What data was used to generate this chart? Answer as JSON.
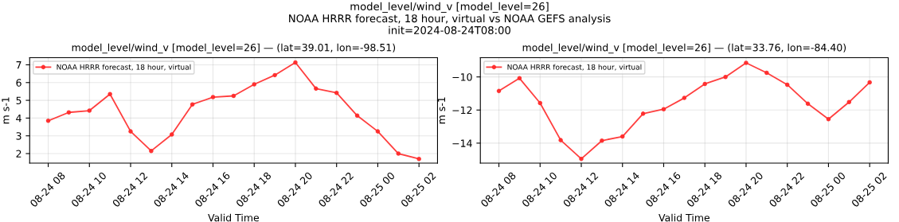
{
  "chart_data": [
    {
      "type": "line",
      "title": "model_level/wind_v [model_level=26] — (lat=39.01, lon=-98.51)",
      "annotations": [
        "model_level/wind_v [model_level=26]\nNOAA HRRR forecast, 18 hour, virtual vs NOAA GEFS analysis\ninit=2024-08-24T08:00"
      ],
      "xlabel": "Valid Time",
      "ylabel": "m s-1",
      "x": [
        "2024-08-24T08:00",
        "2024-08-24T09:00",
        "2024-08-24T10:00",
        "2024-08-24T11:00",
        "2024-08-24T12:00",
        "2024-08-24T13:00",
        "2024-08-24T14:00",
        "2024-08-24T15:00",
        "2024-08-24T16:00",
        "2024-08-24T17:00",
        "2024-08-24T18:00",
        "2024-08-24T19:00",
        "2024-08-24T20:00",
        "2024-08-24T21:00",
        "2024-08-24T22:00",
        "2024-08-24T23:00",
        "2024-08-25T00:00",
        "2024-08-25T01:00",
        "2024-08-25T02:00"
      ],
      "series": [
        {
          "name": "NOAA HRRR forecast, 18 hour, virtual",
          "color": "#ff2a2a",
          "values": [
            3.85,
            4.32,
            4.42,
            5.35,
            3.25,
            2.15,
            3.08,
            4.77,
            5.18,
            5.25,
            5.9,
            6.42,
            7.13,
            5.66,
            5.42,
            4.14,
            3.25,
            2.0,
            1.7
          ]
        }
      ],
      "xlim": [
        "2024-08-24T07:06",
        "2024-08-25T02:54"
      ],
      "ylim": [
        1.46,
        7.4
      ],
      "yticks": [
        2,
        3,
        4,
        5,
        6,
        7
      ],
      "xticks": [
        {
          "value": "2024-08-24T08:00",
          "label": "08-24 08"
        },
        {
          "value": "2024-08-24T10:00",
          "label": "08-24 10"
        },
        {
          "value": "2024-08-24T12:00",
          "label": "08-24 12"
        },
        {
          "value": "2024-08-24T14:00",
          "label": "08-24 14"
        },
        {
          "value": "2024-08-24T16:00",
          "label": "08-24 16"
        },
        {
          "value": "2024-08-24T18:00",
          "label": "08-24 18"
        },
        {
          "value": "2024-08-24T20:00",
          "label": "08-24 20"
        },
        {
          "value": "2024-08-24T22:00",
          "label": "08-24 22"
        },
        {
          "value": "2024-08-25T00:00",
          "label": "08-25 00"
        },
        {
          "value": "2024-08-25T02:00",
          "label": "08-25 02"
        }
      ],
      "grid": true,
      "legend": "top left",
      "marker": "circle",
      "line_style": "solid"
    },
    {
      "type": "line",
      "title": "model_level/wind_v [model_level=26] — (lat=33.76, lon=-84.40)",
      "xlabel": "Valid Time",
      "ylabel": "m s-1",
      "x": [
        "2024-08-24T08:00",
        "2024-08-24T09:00",
        "2024-08-24T10:00",
        "2024-08-24T11:00",
        "2024-08-24T12:00",
        "2024-08-24T13:00",
        "2024-08-24T14:00",
        "2024-08-24T15:00",
        "2024-08-24T16:00",
        "2024-08-24T17:00",
        "2024-08-24T18:00",
        "2024-08-24T19:00",
        "2024-08-24T20:00",
        "2024-08-24T21:00",
        "2024-08-24T22:00",
        "2024-08-24T23:00",
        "2024-08-25T00:00",
        "2024-08-25T01:00",
        "2024-08-25T02:00"
      ],
      "series": [
        {
          "name": "NOAA HRRR forecast, 18 hour, virtual",
          "color": "#ff2a2a",
          "values": [
            -10.85,
            -10.08,
            -11.58,
            -13.82,
            -14.95,
            -13.85,
            -13.6,
            -12.22,
            -11.95,
            -11.27,
            -10.42,
            -10.0,
            -9.15,
            -9.75,
            -10.47,
            -11.62,
            -12.55,
            -11.52,
            -10.33
          ]
        }
      ],
      "xlim": [
        "2024-08-24T07:06",
        "2024-08-25T02:54"
      ],
      "ylim": [
        -15.21,
        -8.84
      ],
      "yticks": [
        {
          "value": -14,
          "label": "−14"
        },
        {
          "value": -12,
          "label": "−12"
        },
        {
          "value": -10,
          "label": "−10"
        }
      ],
      "xticks": [
        {
          "value": "2024-08-24T08:00",
          "label": "08-24 08"
        },
        {
          "value": "2024-08-24T10:00",
          "label": "08-24 10"
        },
        {
          "value": "2024-08-24T12:00",
          "label": "08-24 12"
        },
        {
          "value": "2024-08-24T14:00",
          "label": "08-24 14"
        },
        {
          "value": "2024-08-24T16:00",
          "label": "08-24 16"
        },
        {
          "value": "2024-08-24T18:00",
          "label": "08-24 18"
        },
        {
          "value": "2024-08-24T20:00",
          "label": "08-24 20"
        },
        {
          "value": "2024-08-24T22:00",
          "label": "08-24 22"
        },
        {
          "value": "2024-08-25T00:00",
          "label": "08-25 00"
        },
        {
          "value": "2024-08-25T02:00",
          "label": "08-25 02"
        }
      ],
      "grid": true,
      "legend": "top left",
      "marker": "circle",
      "line_style": "solid"
    }
  ]
}
